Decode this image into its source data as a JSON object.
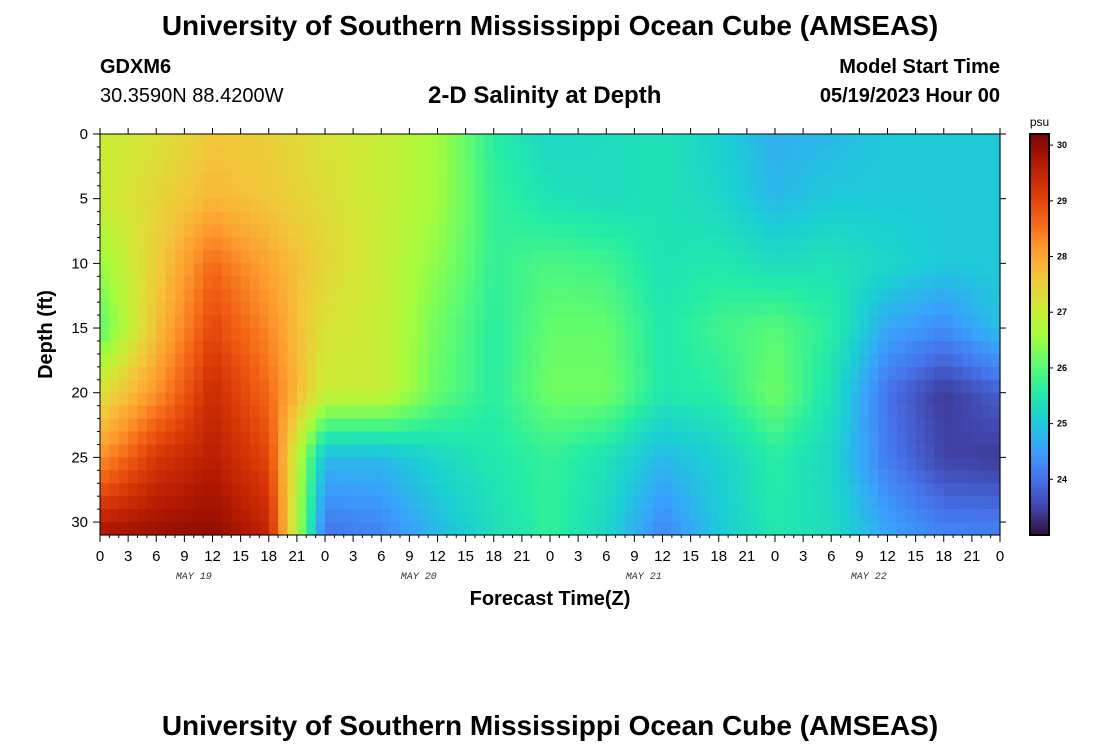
{
  "header": {
    "title": "University of Southern Mississippi Ocean Cube (AMSEAS)",
    "station": "GDXM6",
    "coords": "30.3590N  88.4200W",
    "subtitle": "2-D Salinity at Depth",
    "model_start_label": "Model Start Time",
    "model_start_value": "05/19/2023 Hour 00"
  },
  "footer": {
    "title": "University of Southern Mississippi Ocean Cube (AMSEAS)"
  },
  "chart_data": {
    "type": "heatmap",
    "xlabel": "Forecast Time(Z)",
    "ylabel": "Depth (ft)",
    "colorbar_unit": "psu",
    "colorbar_ticks": [
      30,
      29,
      28,
      27,
      26,
      25,
      24
    ],
    "value_range": [
      23.0,
      30.2
    ],
    "x_tick_labels": [
      "0",
      "3",
      "6",
      "9",
      "12",
      "15",
      "18",
      "21",
      "0",
      "3",
      "6",
      "9",
      "12",
      "15",
      "18",
      "21",
      "0",
      "3",
      "6",
      "9",
      "12",
      "15",
      "18",
      "21",
      "0",
      "3",
      "6",
      "9",
      "12",
      "15",
      "18",
      "21",
      "0"
    ],
    "day_labels": [
      "MAY 19",
      "MAY 20",
      "MAY 21",
      "MAY 22"
    ],
    "y_tick_labels": [
      "0",
      "5",
      "10",
      "15",
      "20",
      "25",
      "30"
    ],
    "xlim_hours": [
      0,
      96
    ],
    "ylim_ft": [
      0,
      31
    ],
    "colormap": [
      "#30123b",
      "#4145ab",
      "#4675ed",
      "#39a2fc",
      "#1bcfd4",
      "#24eca6",
      "#61fc6c",
      "#a4fc3b",
      "#d1e834",
      "#f3c63a",
      "#fe9b2d",
      "#f36315",
      "#d93806",
      "#b11901",
      "#7a0402"
    ],
    "grid_hours": [
      0,
      6,
      12,
      18,
      24,
      30,
      36,
      42,
      48,
      54,
      60,
      66,
      72,
      78,
      84,
      90,
      96
    ],
    "grid_depths_ft": [
      0,
      5,
      10,
      15,
      20,
      25,
      31
    ],
    "salinity_psu": [
      [
        27.0,
        27.2,
        27.6,
        27.5,
        27.2,
        27.0,
        26.6,
        25.6,
        25.2,
        25.3,
        25.4,
        25.1,
        24.7,
        24.8,
        25.0,
        25.0,
        25.0
      ],
      [
        27.0,
        27.4,
        27.8,
        27.6,
        27.3,
        27.0,
        26.6,
        25.7,
        25.4,
        25.3,
        25.4,
        25.2,
        24.8,
        25.0,
        25.0,
        25.0,
        25.0
      ],
      [
        26.5,
        27.5,
        28.6,
        28.0,
        27.4,
        27.0,
        26.4,
        25.7,
        25.9,
        25.8,
        25.4,
        25.5,
        25.3,
        25.4,
        25.2,
        25.0,
        25.0
      ],
      [
        26.0,
        27.7,
        29.0,
        28.3,
        27.2,
        27.0,
        26.2,
        25.6,
        26.1,
        26.1,
        25.5,
        25.8,
        26.0,
        25.6,
        24.6,
        24.3,
        24.9
      ],
      [
        27.2,
        28.2,
        29.4,
        28.6,
        27.0,
        27.0,
        26.1,
        25.6,
        26.2,
        26.2,
        25.5,
        25.6,
        26.2,
        25.4,
        24.0,
        23.4,
        23.8
      ],
      [
        28.2,
        29.2,
        29.6,
        29.0,
        24.8,
        24.8,
        25.2,
        25.5,
        25.7,
        25.4,
        24.8,
        25.1,
        25.6,
        25.2,
        24.1,
        23.5,
        23.4
      ],
      [
        29.8,
        29.9,
        30.0,
        29.5,
        24.0,
        24.2,
        24.8,
        25.3,
        25.7,
        25.2,
        24.2,
        25.0,
        25.5,
        25.3,
        24.6,
        24.2,
        24.2
      ]
    ]
  }
}
